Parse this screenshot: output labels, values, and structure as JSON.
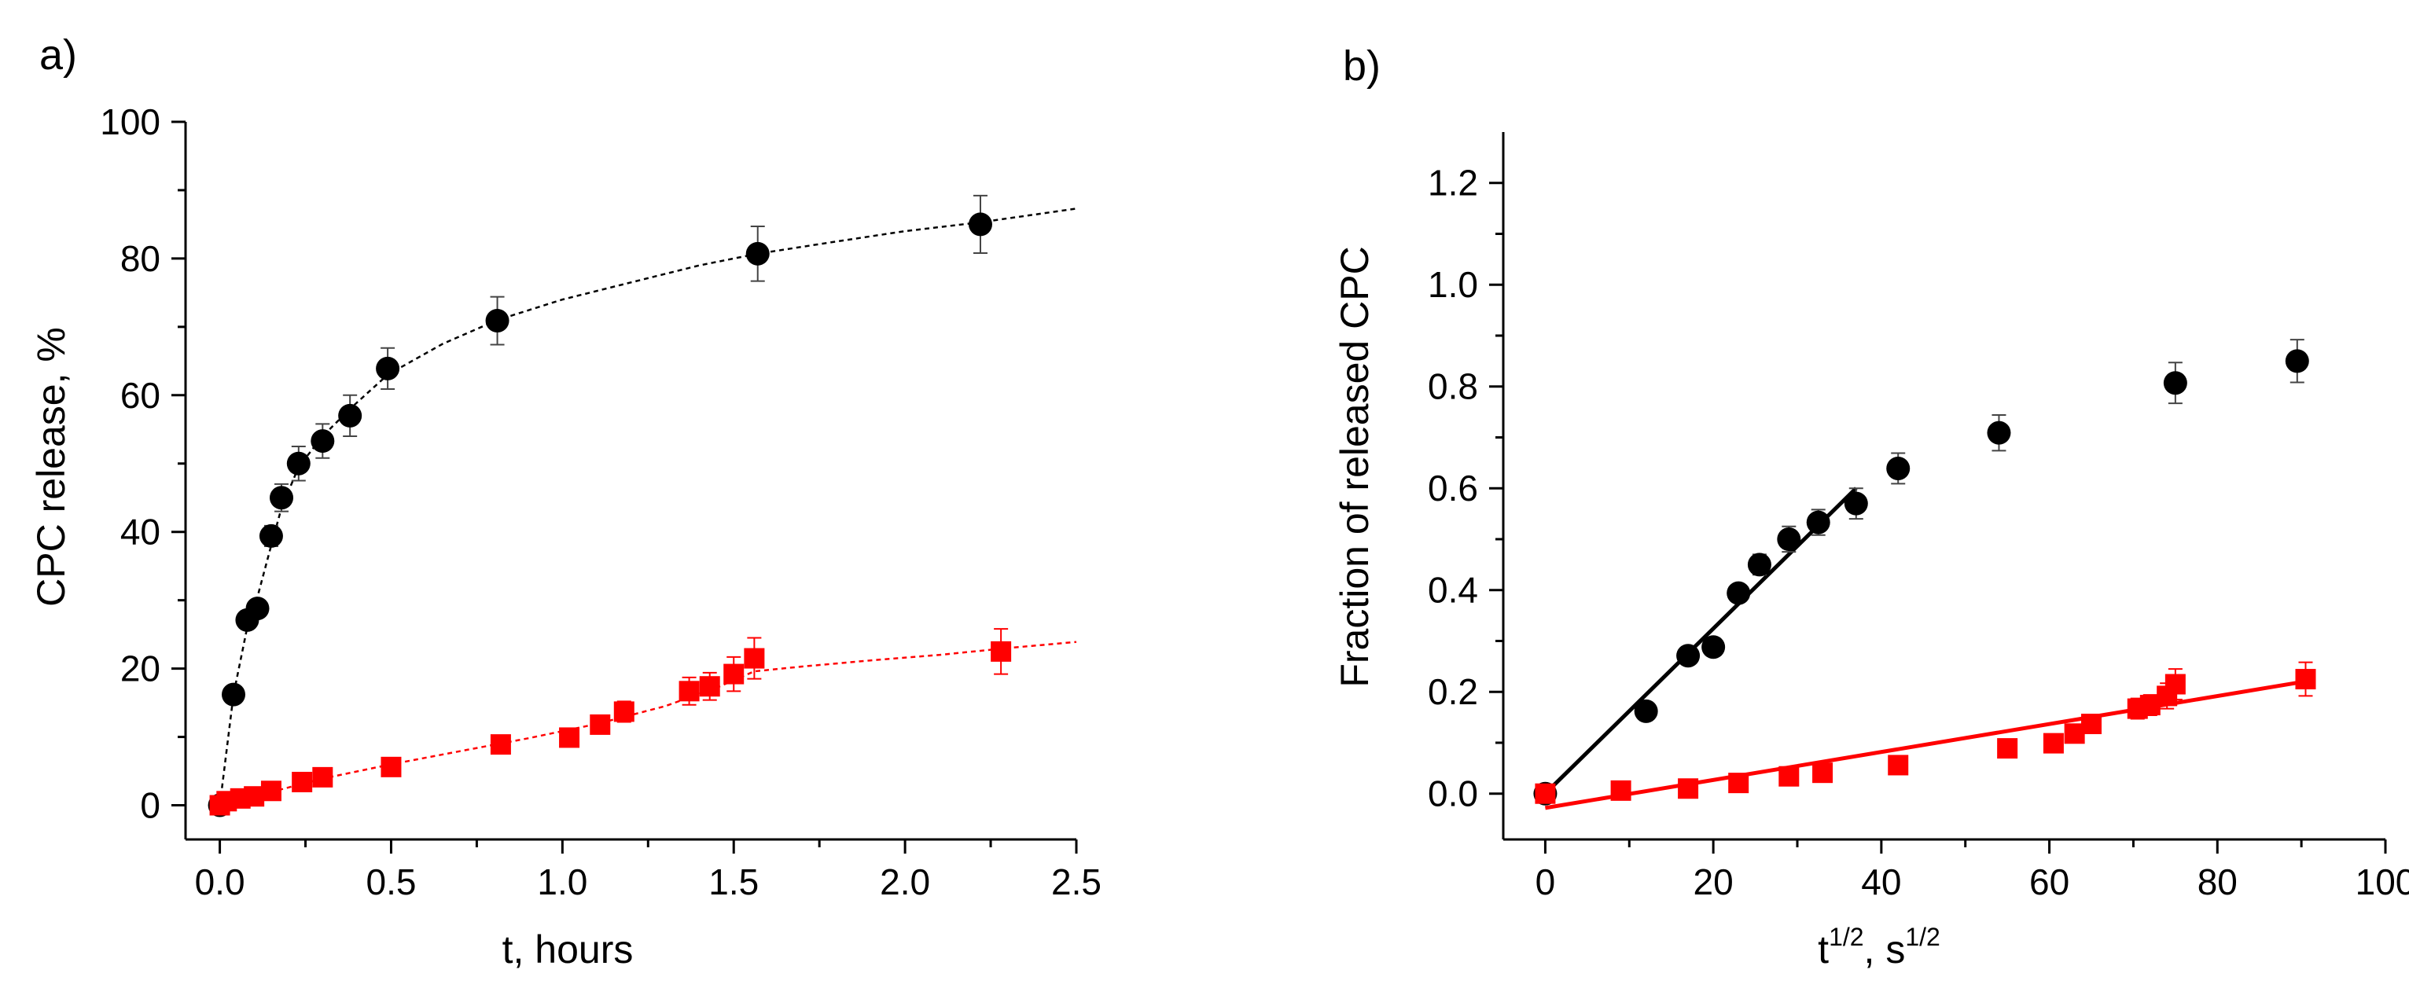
{
  "chart_data": [
    {
      "panel_label": "a)",
      "type": "scatter",
      "xlabel": "t, hours",
      "ylabel": "CPC release, %",
      "xlim": [
        -0.1,
        2.5
      ],
      "ylim": [
        -5,
        100
      ],
      "xticks": [
        0.0,
        0.5,
        1.0,
        1.5,
        2.0,
        2.5
      ],
      "xtick_labels": [
        "0.0",
        "0.5",
        "1.0",
        "1.5",
        "2.0",
        "2.5"
      ],
      "yticks": [
        0,
        20,
        40,
        60,
        80,
        100
      ],
      "ytick_labels": [
        "0",
        "20",
        "40",
        "60",
        "80",
        "100"
      ],
      "series": [
        {
          "name": "circles",
          "marker": "circle",
          "color": "#000000",
          "x": [
            0.0,
            0.04,
            0.08,
            0.11,
            0.15,
            0.18,
            0.23,
            0.3,
            0.38,
            0.49,
            0.81,
            1.57,
            2.22
          ],
          "y": [
            0,
            16.2,
            27.1,
            28.8,
            39.4,
            45,
            50,
            53.3,
            57,
            63.9,
            70.9,
            80.7,
            85
          ],
          "err": [
            0.5,
            0.5,
            1.0,
            1.0,
            1.5,
            2.0,
            2.5,
            2.5,
            3.0,
            3.0,
            3.5,
            4.0,
            4.2
          ],
          "fit": {
            "style": "dotted",
            "x": [
              0.0,
              0.04,
              0.08,
              0.11,
              0.15,
              0.18,
              0.23,
              0.3,
              0.38,
              0.49,
              0.65,
              0.81,
              1.0,
              1.2,
              1.4,
              1.57,
              1.8,
              2.0,
              2.22,
              2.5
            ],
            "y": [
              0,
              16.2,
              26,
              30.5,
              38,
              43.5,
              49.5,
              54,
              58,
              63,
              67.5,
              71,
              74,
              76.5,
              79,
              80.7,
              82.5,
              84,
              85.3,
              87.3
            ]
          }
        },
        {
          "name": "squares",
          "marker": "square",
          "color": "#ff0000",
          "x": [
            0.0,
            0.02,
            0.06,
            0.1,
            0.15,
            0.24,
            0.3,
            0.5,
            0.82,
            1.02,
            1.11,
            1.18,
            1.37,
            1.43,
            1.5,
            1.56,
            2.28
          ],
          "y": [
            0,
            0.6,
            1.0,
            1.3,
            2.1,
            3.4,
            4.1,
            5.6,
            8.9,
            9.9,
            11.8,
            13.7,
            16.7,
            17.4,
            19.2,
            21.5,
            22.5
          ],
          "err": [
            0.3,
            0.3,
            0.3,
            0.3,
            0.3,
            0.3,
            0.3,
            0.4,
            0.4,
            0.6,
            1.0,
            1.5,
            2.0,
            2.0,
            2.5,
            3.0,
            3.3
          ],
          "fit": {
            "style": "dotted",
            "x": [
              0.0,
              0.1,
              0.2,
              0.3,
              0.5,
              0.7,
              0.9,
              1.1,
              1.3,
              1.45,
              1.56,
              1.7,
              1.9,
              2.1,
              2.3,
              2.5
            ],
            "y": [
              0,
              1.3,
              2.6,
              3.9,
              6.0,
              7.9,
              9.8,
              11.9,
              14.5,
              17.2,
              19.6,
              20.3,
              21.2,
              22.0,
              23.0,
              23.9
            ]
          }
        }
      ]
    },
    {
      "panel_label": "b)",
      "type": "scatter",
      "xlabel": "t",
      "xlabel_sup": "1/2",
      "xlabel_mid": ", s",
      "xlabel_sup2": "1/2",
      "ylabel": "Fraction of released CPC",
      "xlim": [
        -5,
        100
      ],
      "ylim": [
        -0.09,
        1.3
      ],
      "xticks": [
        0,
        20,
        40,
        60,
        80,
        100
      ],
      "xtick_labels": [
        "0",
        "20",
        "40",
        "60",
        "80",
        "100"
      ],
      "yticks": [
        0.0,
        0.2,
        0.4,
        0.6,
        0.8,
        1.0,
        1.2
      ],
      "ytick_labels": [
        "0.0",
        "0.2",
        "0.4",
        "0.6",
        "0.8",
        "1.0",
        "1.2"
      ],
      "series": [
        {
          "name": "circles",
          "marker": "circle",
          "color": "#000000",
          "x": [
            0,
            12,
            17,
            20,
            23,
            25.5,
            29,
            32.5,
            37,
            42,
            54,
            75,
            89.5
          ],
          "y": [
            0.0,
            0.162,
            0.271,
            0.288,
            0.394,
            0.45,
            0.5,
            0.533,
            0.57,
            0.639,
            0.709,
            0.807,
            0.85
          ],
          "err": [
            0.005,
            0.005,
            0.01,
            0.01,
            0.015,
            0.02,
            0.025,
            0.025,
            0.03,
            0.03,
            0.035,
            0.04,
            0.042
          ],
          "fit": {
            "style": "solid",
            "x": [
              0,
              37
            ],
            "y": [
              0.0,
              0.6
            ]
          }
        },
        {
          "name": "squares",
          "marker": "square",
          "color": "#ff0000",
          "x": [
            0,
            9,
            17,
            23,
            29,
            33,
            42,
            55,
            60.5,
            63,
            65,
            70.5,
            72,
            74,
            75,
            90.5
          ],
          "y": [
            0.0,
            0.006,
            0.01,
            0.021,
            0.034,
            0.041,
            0.056,
            0.089,
            0.099,
            0.118,
            0.137,
            0.167,
            0.174,
            0.192,
            0.215,
            0.225
          ],
          "err": [
            0.003,
            0.003,
            0.003,
            0.003,
            0.003,
            0.003,
            0.004,
            0.004,
            0.006,
            0.01,
            0.015,
            0.02,
            0.02,
            0.025,
            0.03,
            0.033
          ],
          "fit": {
            "style": "solid",
            "x": [
              0,
              91
            ],
            "y": [
              -0.028,
              0.222
            ]
          }
        }
      ]
    }
  ]
}
